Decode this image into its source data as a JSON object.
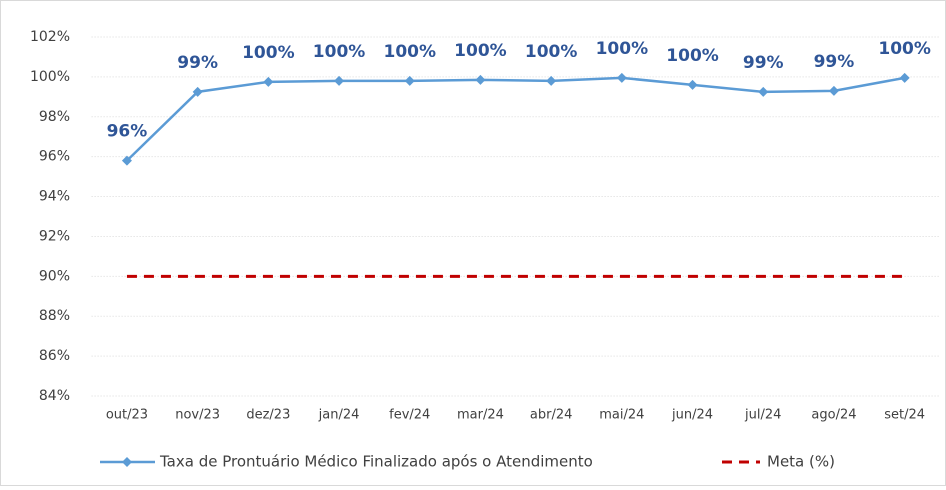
{
  "chart_data": {
    "type": "line",
    "categories": [
      "out/23",
      "nov/23",
      "dez/23",
      "jan/24",
      "fev/24",
      "mar/24",
      "abr/24",
      "mai/24",
      "jun/24",
      "jul/24",
      "ago/24",
      "set/24"
    ],
    "series": [
      {
        "name": "Taxa de Prontuário Médico Finalizado após o Atendimento",
        "color": "#5b9bd5",
        "label_color": "#2f5597",
        "values": [
          95.8,
          99.25,
          99.75,
          99.8,
          99.8,
          99.85,
          99.8,
          99.95,
          99.6,
          99.25,
          99.3,
          99.95
        ],
        "value_labels": [
          "96%",
          "99%",
          "100%",
          "100%",
          "100%",
          "100%",
          "100%",
          "100%",
          "100%",
          "99%",
          "99%",
          "100%"
        ]
      },
      {
        "name": "Meta (%)",
        "color": "#c00000",
        "dashed": true,
        "values": [
          90,
          90,
          90,
          90,
          90,
          90,
          90,
          90,
          90,
          90,
          90,
          90
        ]
      }
    ],
    "ylim": [
      84,
      102
    ],
    "yticks": [
      {
        "value": 84,
        "label": "84%"
      },
      {
        "value": 86,
        "label": "86%"
      },
      {
        "value": 88,
        "label": "88%"
      },
      {
        "value": 90,
        "label": "90%"
      },
      {
        "value": 92,
        "label": "92%"
      },
      {
        "value": 94,
        "label": "94%"
      },
      {
        "value": 96,
        "label": "96%"
      },
      {
        "value": 98,
        "label": "98%"
      },
      {
        "value": 100,
        "label": "100%"
      },
      {
        "value": 102,
        "label": "102%"
      }
    ],
    "grid": true,
    "legend": "bottom"
  }
}
